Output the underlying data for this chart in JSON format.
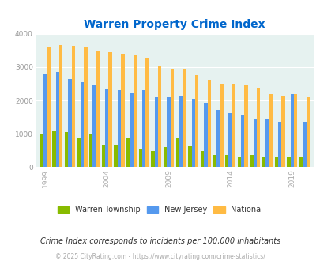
{
  "title": "Warren Property Crime Index",
  "title_color": "#0066cc",
  "subtitle": "Crime Index corresponds to incidents per 100,000 inhabitants",
  "footer": "© 2025 CityRating.com - https://www.cityrating.com/crime-statistics/",
  "years": [
    1999,
    2000,
    2001,
    2002,
    2003,
    2004,
    2005,
    2006,
    2007,
    2008,
    2009,
    2010,
    2011,
    2012,
    2013,
    2014,
    2015,
    2016,
    2017,
    2018,
    2019,
    2020
  ],
  "warren": [
    1010,
    1070,
    1040,
    890,
    1010,
    670,
    670,
    870,
    560,
    490,
    600,
    860,
    640,
    470,
    350,
    350,
    280,
    370,
    300,
    280,
    290,
    280
  ],
  "nj": [
    2780,
    2850,
    2650,
    2550,
    2460,
    2360,
    2300,
    2220,
    2300,
    2090,
    2090,
    2150,
    2060,
    1920,
    1720,
    1630,
    1560,
    1430,
    1430,
    1350,
    2190,
    1350
  ],
  "national": [
    3620,
    3660,
    3630,
    3600,
    3510,
    3450,
    3400,
    3350,
    3290,
    3050,
    2960,
    2940,
    2760,
    2610,
    2510,
    2490,
    2460,
    2390,
    2190,
    2110,
    2190,
    2100
  ],
  "warren_color": "#88bb00",
  "nj_color": "#5599ee",
  "national_color": "#ffbb44",
  "bg_color": "#e6f2f0",
  "ylim": [
    0,
    4000
  ],
  "bar_width": 0.28,
  "legend_labels": [
    "Warren Township",
    "New Jersey",
    "National"
  ],
  "xtick_years": [
    1999,
    2004,
    2009,
    2014,
    2019
  ]
}
